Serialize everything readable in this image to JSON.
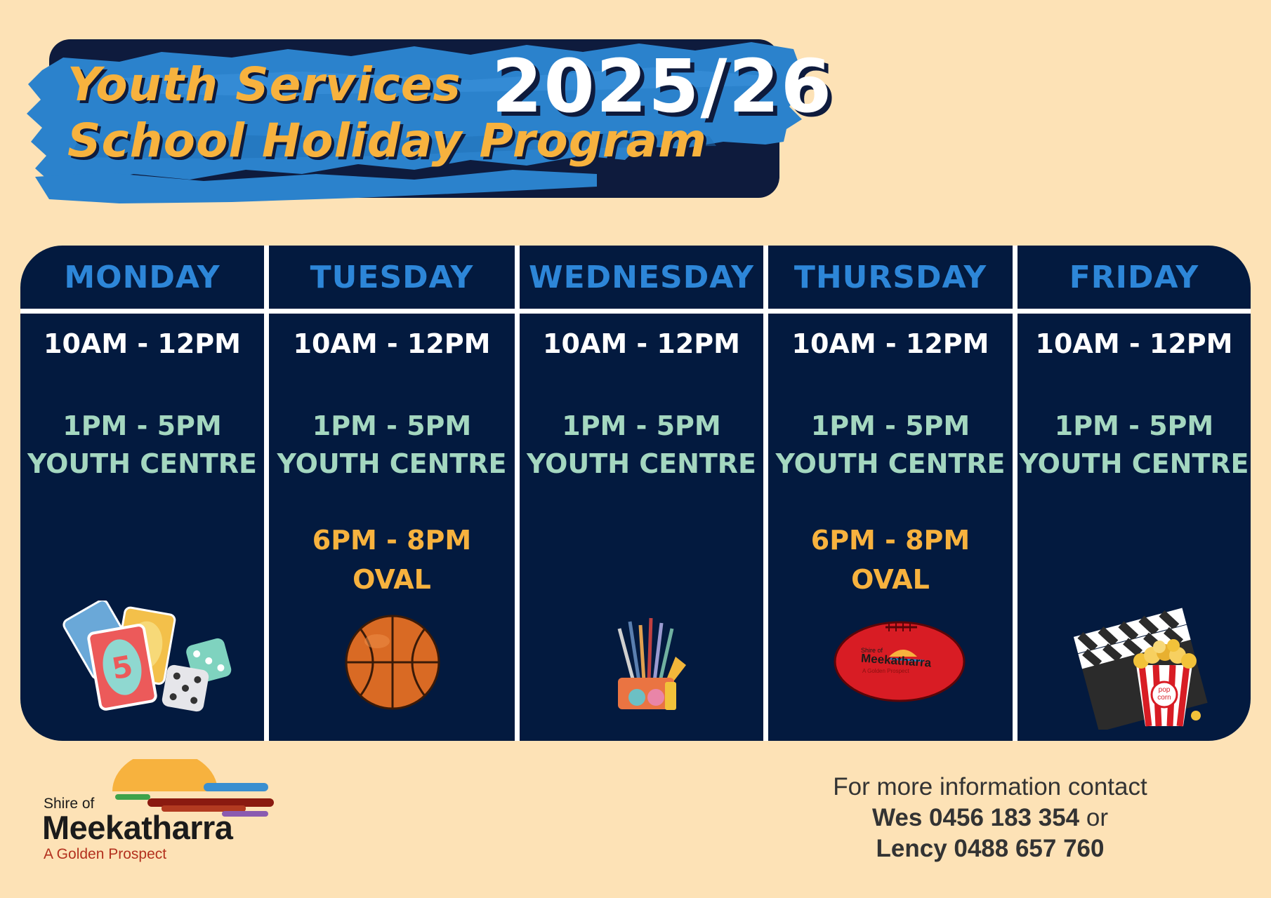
{
  "banner": {
    "title_line1": "Youth Services",
    "title_line2": "School Holiday Program",
    "year": "2025/26"
  },
  "schedule": {
    "days": [
      {
        "name": "MONDAY",
        "slot1": "10AM - 12PM",
        "slot2_time": "1PM - 5PM",
        "slot2_place": "YOUTH CENTRE",
        "slot3_time": "",
        "slot3_place": "",
        "icon": "cards-and-dice-icon"
      },
      {
        "name": "TUESDAY",
        "slot1": "10AM - 12PM",
        "slot2_time": "1PM - 5PM",
        "slot2_place": "YOUTH CENTRE",
        "slot3_time": "6PM - 8PM",
        "slot3_place": "OVAL",
        "icon": "basketball-icon"
      },
      {
        "name": "WEDNESDAY",
        "slot1": "10AM - 12PM",
        "slot2_time": "1PM - 5PM",
        "slot2_place": "YOUTH CENTRE",
        "slot3_time": "",
        "slot3_place": "",
        "icon": "paint-brushes-icon"
      },
      {
        "name": "THURSDAY",
        "slot1": "10AM - 12PM",
        "slot2_time": "1PM - 5PM",
        "slot2_place": "YOUTH CENTRE",
        "slot3_time": "6PM - 8PM",
        "slot3_place": "OVAL",
        "icon": "football-icon"
      },
      {
        "name": "FRIDAY",
        "slot1": "10AM - 12PM",
        "slot2_time": "1PM - 5PM",
        "slot2_place": "YOUTH CENTRE",
        "slot3_time": "",
        "slot3_place": "",
        "icon": "movie-popcorn-icon"
      }
    ]
  },
  "football_logo": {
    "shire": "Shire of",
    "name": "Meekatharra",
    "tag": "A Golden Prospect"
  },
  "popcorn_label": "pop corn",
  "logo": {
    "shire": "Shire of",
    "name": "Meekatharra",
    "tagline": "A Golden Prospect"
  },
  "contact": {
    "intro": "For more information contact",
    "person1": "Wes 0456 183 354",
    "joiner": "or",
    "person2": "Lency 0488 657 760"
  },
  "colors": {
    "background": "#fde2b6",
    "navy": "#031a3f",
    "banner_blue": "#2b82cc",
    "title_orange": "#f7b23e",
    "day_blue": "#2d86d8",
    "youth_centre_green": "#a4d7c0",
    "oval_orange": "#f7b23e"
  }
}
